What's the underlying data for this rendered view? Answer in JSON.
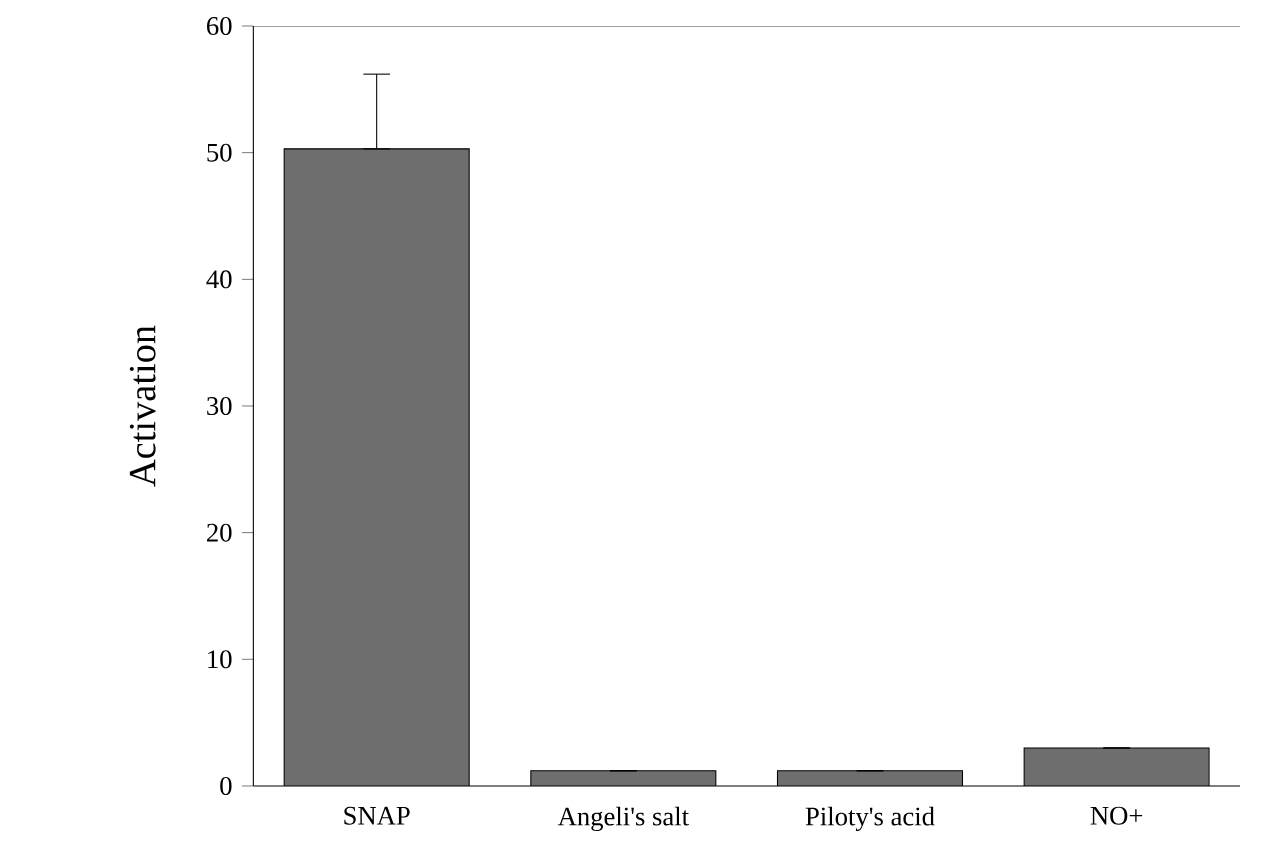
{
  "chart_data": {
    "type": "bar",
    "ylabel": "Activation",
    "categories": [
      "SNAP",
      "Angeli's salt",
      "Piloty's acid",
      "NO+"
    ],
    "values": [
      50.3,
      1.2,
      1.2,
      3.0
    ],
    "errors": [
      [
        50.3,
        56.2
      ],
      null,
      null,
      null
    ],
    "color": "#6e6e6e",
    "ylim": [
      0,
      60
    ],
    "yticks": [
      0,
      10,
      20,
      30,
      40,
      50,
      60
    ],
    "grid": false
  }
}
